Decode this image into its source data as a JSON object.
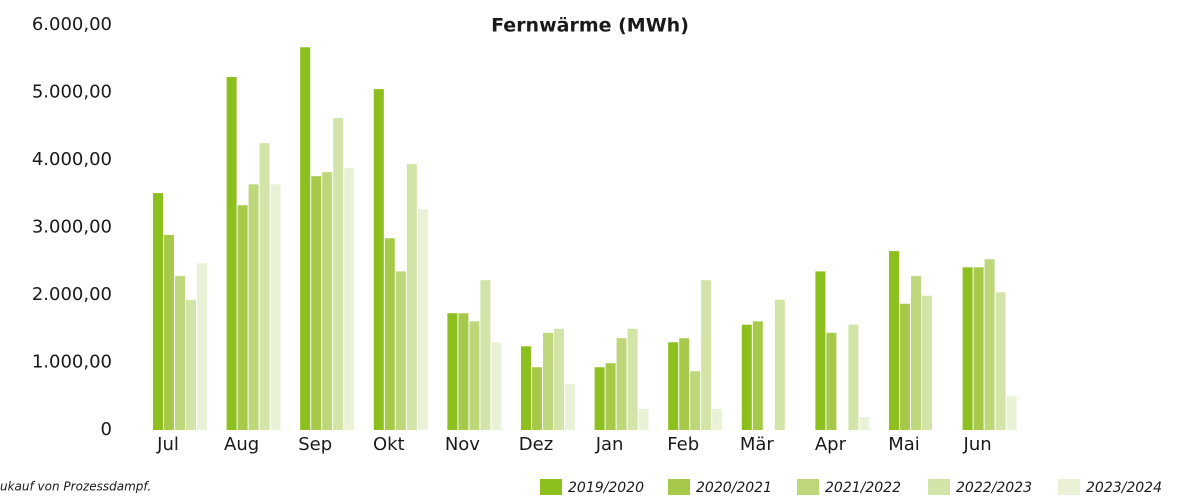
{
  "chart_data": {
    "type": "bar",
    "title": "Fernwärme (MWh)",
    "note": "ukauf von Prozessdampf.",
    "categories": [
      "Jul",
      "Aug",
      "Sep",
      "Okt",
      "Nov",
      "Dez",
      "Jan",
      "Feb",
      "Mär",
      "Apr",
      "Mai",
      "Jun"
    ],
    "series": [
      {
        "name": "2019/2020",
        "color": "#8dbf1f",
        "values": [
          3510,
          5230,
          5670,
          5050,
          1730,
          1240,
          930,
          1300,
          1560,
          2350,
          2650,
          2410
        ]
      },
      {
        "name": "2020/2021",
        "color": "#a6c94a",
        "values": [
          2890,
          3330,
          3760,
          2840,
          1730,
          930,
          990,
          1360,
          1610,
          1440,
          1870,
          2410
        ]
      },
      {
        "name": "2021/2022",
        "color": "#bdd77a",
        "values": [
          2280,
          3640,
          3820,
          2350,
          1610,
          1440,
          1360,
          870,
          null,
          null,
          2280,
          2530
        ]
      },
      {
        "name": "2022/2023",
        "color": "#d3e4a8",
        "values": [
          1930,
          4250,
          4620,
          3940,
          2220,
          1500,
          1500,
          2220,
          1930,
          1560,
          1990,
          2040
        ]
      },
      {
        "name": "2023/2024",
        "color": "#e9f1d6",
        "values": [
          2470,
          3640,
          3880,
          3270,
          1300,
          680,
          310,
          310,
          null,
          190,
          null,
          500
        ]
      }
    ],
    "ylim": [
      0,
      6000
    ],
    "yticks": [
      0,
      {
        "value": 1000,
        "label": "1.000,00"
      },
      {
        "value": 2000,
        "label": "2.000,00"
      },
      {
        "value": 3000,
        "label": "3.000,00"
      },
      {
        "value": 4000,
        "label": "4.000,00"
      },
      {
        "value": 5000,
        "label": "5.000,00"
      },
      {
        "value": 6000,
        "label": "6.000,00"
      }
    ],
    "legend": "bottom-right"
  }
}
